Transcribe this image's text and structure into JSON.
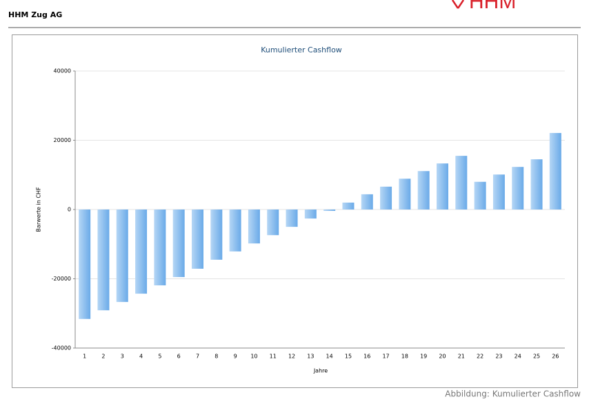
{
  "header": {
    "company": "HHM Zug AG",
    "logo": "HHM"
  },
  "caption": "Abbildung: Kumulierter Cashflow",
  "chart_data": {
    "type": "bar",
    "title": "Kumulierter Cashflow",
    "x_label": "Jahre",
    "y_label": "Barwerte in CHF",
    "categories": [
      "1",
      "2",
      "3",
      "4",
      "5",
      "6",
      "7",
      "8",
      "9",
      "10",
      "11",
      "12",
      "13",
      "14",
      "15",
      "16",
      "17",
      "18",
      "19",
      "20",
      "21",
      "22",
      "23",
      "24",
      "25",
      "26"
    ],
    "values": [
      -31600,
      -29100,
      -26700,
      -24300,
      -21900,
      -19500,
      -17100,
      -14500,
      -12100,
      -9800,
      -7400,
      -5000,
      -2600,
      -400,
      2000,
      4400,
      6600,
      8900,
      11100,
      13300,
      15500,
      8000,
      10100,
      12300,
      14500,
      22100
    ],
    "color": "#6aaae8",
    "ylim": [
      -40000,
      40000
    ],
    "yticks": [
      -40000,
      -20000,
      0,
      20000,
      40000
    ],
    "grid": true
  }
}
